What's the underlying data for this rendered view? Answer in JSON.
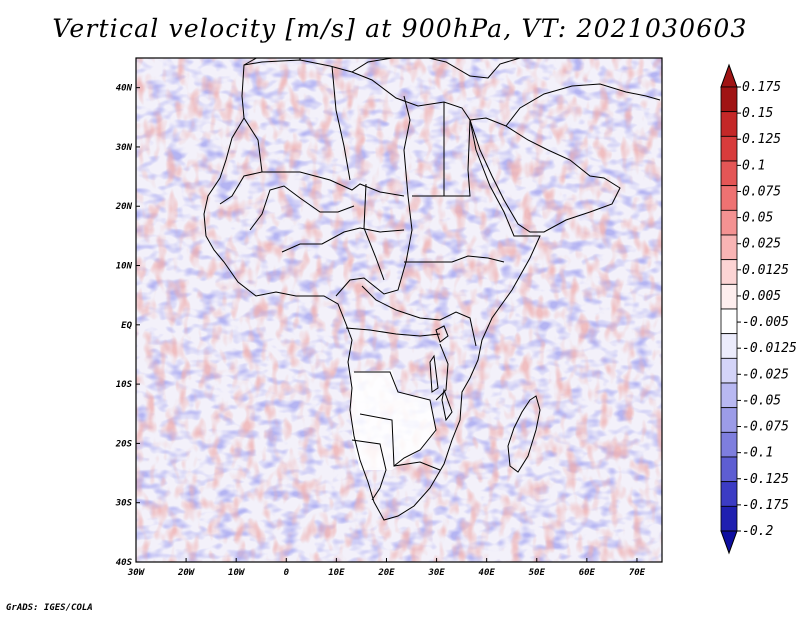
{
  "title": "Vertical velocity [m/s] at 900hPa, VT: 2021030603",
  "footer": "GrADS: IGES/COLA",
  "map": {
    "region": "Africa",
    "field": "vertical velocity",
    "level": "900hPa",
    "lon_range": [
      -30,
      75
    ],
    "lat_range": [
      -40,
      45
    ],
    "x_ticks": [
      {
        "value": -30,
        "label": "30W"
      },
      {
        "value": -20,
        "label": "20W"
      },
      {
        "value": -10,
        "label": "10W"
      },
      {
        "value": 0,
        "label": "0"
      },
      {
        "value": 10,
        "label": "10E"
      },
      {
        "value": 20,
        "label": "20E"
      },
      {
        "value": 30,
        "label": "30E"
      },
      {
        "value": 40,
        "label": "40E"
      },
      {
        "value": 50,
        "label": "50E"
      },
      {
        "value": 60,
        "label": "60E"
      },
      {
        "value": 70,
        "label": "70E"
      }
    ],
    "y_ticks": [
      {
        "value": 40,
        "label": "40N"
      },
      {
        "value": 30,
        "label": "30N"
      },
      {
        "value": 20,
        "label": "20N"
      },
      {
        "value": 10,
        "label": "10N"
      },
      {
        "value": 0,
        "label": "EQ"
      },
      {
        "value": -10,
        "label": "10S"
      },
      {
        "value": -20,
        "label": "20S"
      },
      {
        "value": -30,
        "label": "30S"
      },
      {
        "value": -40,
        "label": "40S"
      }
    ]
  },
  "colorbar": {
    "labels": [
      "0.175",
      "0.15",
      "0.125",
      "0.1",
      "0.075",
      "0.05",
      "0.025",
      "0.0125",
      "0.005",
      "-0.005",
      "-0.0125",
      "-0.025",
      "-0.05",
      "-0.075",
      "-0.1",
      "-0.125",
      "-0.175",
      "-0.2"
    ],
    "colors": [
      "#a01414",
      "#c42828",
      "#d83c3c",
      "#e45656",
      "#ee7272",
      "#f49292",
      "#f8b4b4",
      "#fcd4d4",
      "#feeeee",
      "#ffffff",
      "#ececfc",
      "#d4d4f8",
      "#b8b8f2",
      "#9c9ce8",
      "#7e7ede",
      "#5e5ed2",
      "#3c3cc4",
      "#2020b0",
      "#0e0ea0"
    ],
    "top_color": "#a01414",
    "bottom_color": "#0e0ea0"
  }
}
